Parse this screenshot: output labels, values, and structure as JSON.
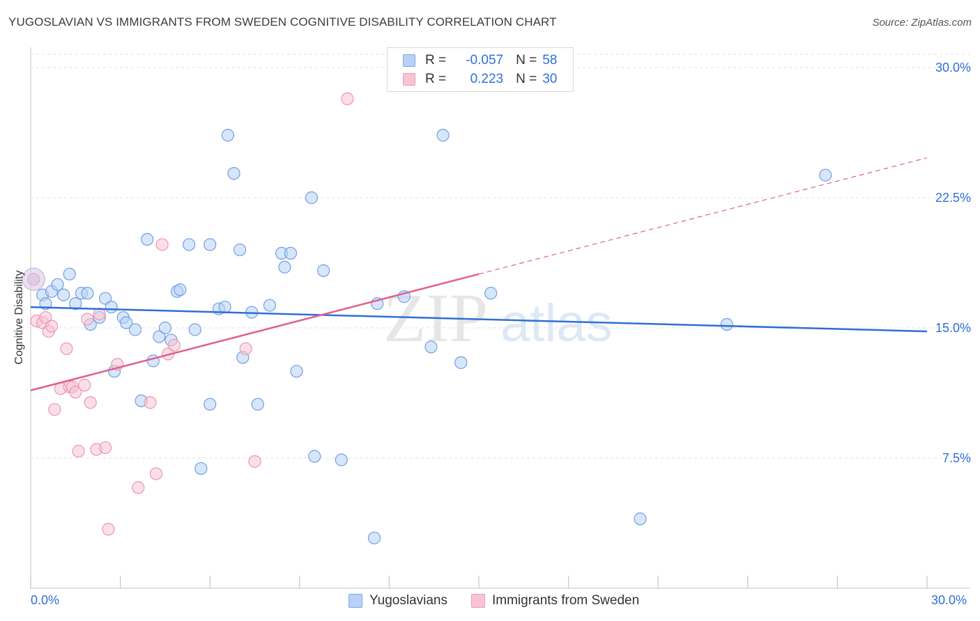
{
  "header": {
    "title": "YUGOSLAVIAN VS IMMIGRANTS FROM SWEDEN COGNITIVE DISABILITY CORRELATION CHART",
    "source": "Source: ZipAtlas.com"
  },
  "watermark": {
    "zip": "ZIP",
    "atlas": "atlas"
  },
  "legend": {
    "rows": [
      {
        "r_label": "R =",
        "r_value": "-0.057",
        "n_label": "N =",
        "n_value": "58"
      },
      {
        "r_label": "R =",
        "r_value": "0.223",
        "n_label": "N =",
        "n_value": "30"
      }
    ]
  },
  "colors": {
    "blue_fill": "#b8d1f5",
    "blue_stroke": "#6f9fe3",
    "blue_line": "#2f6fd6",
    "pink_fill": "#f8c4d4",
    "pink_stroke": "#ee94b2",
    "pink_line": "#e0608f",
    "grid": "#e2e2e2",
    "tick_label": "#2f6fd6"
  },
  "chart_data": {
    "type": "scatter",
    "title": "YUGOSLAVIAN VS IMMIGRANTS FROM SWEDEN COGNITIVE DISABILITY CORRELATION CHART",
    "xlabel": "",
    "ylabel": "Cognitive Disability",
    "xlim": [
      0,
      30
    ],
    "ylim": [
      0,
      30
    ],
    "x_tick_labels": [
      "0.0%",
      "30.0%"
    ],
    "y_ticks": [
      7.5,
      15.0,
      22.5,
      30.0
    ],
    "y_tick_labels": [
      "7.5%",
      "15.0%",
      "22.5%",
      "30.0%"
    ],
    "grid": true,
    "legend_position": "top-center",
    "series": [
      {
        "name": "Yugoslavians",
        "color": "#6f9fe3",
        "trend": {
          "x": [
            0,
            30
          ],
          "y": [
            16.2,
            14.8
          ],
          "dashed_from": null
        },
        "points": [
          [
            0.1,
            17.8
          ],
          [
            0.4,
            16.9
          ],
          [
            0.5,
            16.4
          ],
          [
            0.7,
            17.1
          ],
          [
            0.9,
            17.5
          ],
          [
            1.1,
            16.9
          ],
          [
            1.3,
            18.1
          ],
          [
            1.5,
            16.4
          ],
          [
            1.7,
            17.0
          ],
          [
            1.9,
            17.0
          ],
          [
            2.0,
            15.2
          ],
          [
            2.3,
            15.6
          ],
          [
            2.5,
            16.7
          ],
          [
            2.7,
            16.2
          ],
          [
            2.8,
            12.5
          ],
          [
            3.1,
            15.6
          ],
          [
            3.2,
            15.3
          ],
          [
            3.5,
            14.9
          ],
          [
            3.7,
            10.8
          ],
          [
            3.9,
            20.1
          ],
          [
            4.1,
            13.1
          ],
          [
            4.3,
            14.5
          ],
          [
            4.5,
            15.0
          ],
          [
            4.7,
            14.3
          ],
          [
            4.9,
            17.1
          ],
          [
            5.0,
            17.2
          ],
          [
            5.3,
            19.8
          ],
          [
            5.5,
            14.9
          ],
          [
            5.7,
            6.9
          ],
          [
            6.0,
            10.6
          ],
          [
            6.0,
            19.8
          ],
          [
            6.3,
            16.1
          ],
          [
            6.5,
            16.2
          ],
          [
            6.6,
            26.1
          ],
          [
            6.8,
            23.9
          ],
          [
            7.0,
            19.5
          ],
          [
            7.1,
            13.3
          ],
          [
            7.4,
            15.9
          ],
          [
            7.6,
            10.6
          ],
          [
            8.0,
            16.3
          ],
          [
            8.4,
            19.3
          ],
          [
            8.5,
            18.5
          ],
          [
            8.7,
            19.3
          ],
          [
            8.9,
            12.5
          ],
          [
            9.4,
            22.5
          ],
          [
            9.5,
            7.6
          ],
          [
            9.8,
            18.3
          ],
          [
            10.4,
            7.4
          ],
          [
            11.5,
            2.9
          ],
          [
            11.6,
            16.4
          ],
          [
            12.5,
            16.8
          ],
          [
            13.4,
            13.9
          ],
          [
            13.8,
            26.1
          ],
          [
            14.4,
            13.0
          ],
          [
            15.4,
            17.0
          ],
          [
            20.4,
            4.0
          ],
          [
            23.3,
            15.2
          ],
          [
            26.6,
            23.8
          ]
        ]
      },
      {
        "name": "Immigrants from Sweden",
        "color": "#ee94b2",
        "trend": {
          "x": [
            0,
            30
          ],
          "y": [
            11.4,
            24.8
          ],
          "dashed_from": 15.0
        },
        "points": [
          [
            0.1,
            17.8
          ],
          [
            0.2,
            15.4
          ],
          [
            0.4,
            15.3
          ],
          [
            0.5,
            15.6
          ],
          [
            0.6,
            14.8
          ],
          [
            0.7,
            15.1
          ],
          [
            0.8,
            10.3
          ],
          [
            1.0,
            11.5
          ],
          [
            1.2,
            13.8
          ],
          [
            1.3,
            11.6
          ],
          [
            1.4,
            11.6
          ],
          [
            1.5,
            11.3
          ],
          [
            1.6,
            7.9
          ],
          [
            1.8,
            11.7
          ],
          [
            1.9,
            15.5
          ],
          [
            2.0,
            10.7
          ],
          [
            2.2,
            8.0
          ],
          [
            2.3,
            15.8
          ],
          [
            2.5,
            8.1
          ],
          [
            2.6,
            3.4
          ],
          [
            2.9,
            12.9
          ],
          [
            3.6,
            5.8
          ],
          [
            4.0,
            10.7
          ],
          [
            4.2,
            6.6
          ],
          [
            4.4,
            19.8
          ],
          [
            4.6,
            13.5
          ],
          [
            4.8,
            14.0
          ],
          [
            7.2,
            13.8
          ],
          [
            7.5,
            7.3
          ],
          [
            10.6,
            28.2
          ]
        ]
      }
    ]
  },
  "bottom_legend": {
    "items": [
      "Yugoslavians",
      "Immigrants from Sweden"
    ]
  }
}
